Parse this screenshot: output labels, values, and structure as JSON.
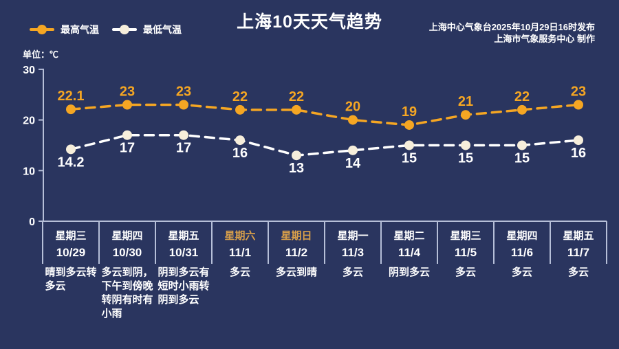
{
  "page": {
    "title": "上海10天天气趋势",
    "credits": [
      "上海中心气象台2025年10月29日16时发布",
      "上海市气象服务中心 制作"
    ],
    "unit_label": "单位：℃"
  },
  "colors": {
    "background": "#2A355F",
    "text": "#FFFFFF",
    "high_series": "#F5A623",
    "low_series_line": "#FFFFFF",
    "low_marker": "#F6EEDB",
    "axis_line": "#B6BFD8",
    "weekend_label": "#D9A04A"
  },
  "legend": [
    {
      "label": "最高气温"
    },
    {
      "label": "最低气温"
    }
  ],
  "chart_data": {
    "type": "line",
    "title": "上海10天天气趋势",
    "unit": "℃",
    "categories": [
      "10/29",
      "10/30",
      "10/31",
      "11/1",
      "11/2",
      "11/3",
      "11/4",
      "11/5",
      "11/6",
      "11/7"
    ],
    "series": [
      {
        "name": "最高气温",
        "values": [
          22.1,
          23,
          23,
          22,
          22,
          20,
          19,
          21,
          22,
          23
        ],
        "color": "#F5A623",
        "marker_color": "#F5A623",
        "label_color": "#F5A623",
        "label_position": "above",
        "line_style": "dashed"
      },
      {
        "name": "最低气温",
        "values": [
          14.2,
          17,
          17,
          16,
          13,
          14,
          15,
          15,
          15,
          16
        ],
        "color": "#FFFFFF",
        "marker_color": "#F6EEDB",
        "label_color": "#FFFFFF",
        "label_position": "below",
        "line_style": "dashed"
      }
    ],
    "ylim": [
      0,
      30
    ],
    "yticks": [
      0,
      10,
      20,
      30
    ],
    "grid": false,
    "legend_position": "top-left"
  },
  "days": [
    {
      "weekday": "星期三",
      "date": "10/29",
      "weekend": false,
      "weather": "晴到多云转\n多云"
    },
    {
      "weekday": "星期四",
      "date": "10/30",
      "weekend": false,
      "weather": "多云到阴，\n下午到傍晚\n转阴有时有\n小雨"
    },
    {
      "weekday": "星期五",
      "date": "10/31",
      "weekend": false,
      "weather": "阴到多云有\n短时小雨转\n阴到多云"
    },
    {
      "weekday": "星期六",
      "date": "11/1",
      "weekend": true,
      "weather": "多云"
    },
    {
      "weekday": "星期日",
      "date": "11/2",
      "weekend": true,
      "weather": "多云到晴"
    },
    {
      "weekday": "星期一",
      "date": "11/3",
      "weekend": false,
      "weather": "多云"
    },
    {
      "weekday": "星期二",
      "date": "11/4",
      "weekend": false,
      "weather": "阴到多云"
    },
    {
      "weekday": "星期三",
      "date": "11/5",
      "weekend": false,
      "weather": "多云"
    },
    {
      "weekday": "星期四",
      "date": "11/6",
      "weekend": false,
      "weather": "多云"
    },
    {
      "weekday": "星期五",
      "date": "11/7",
      "weekend": false,
      "weather": "多云"
    }
  ]
}
